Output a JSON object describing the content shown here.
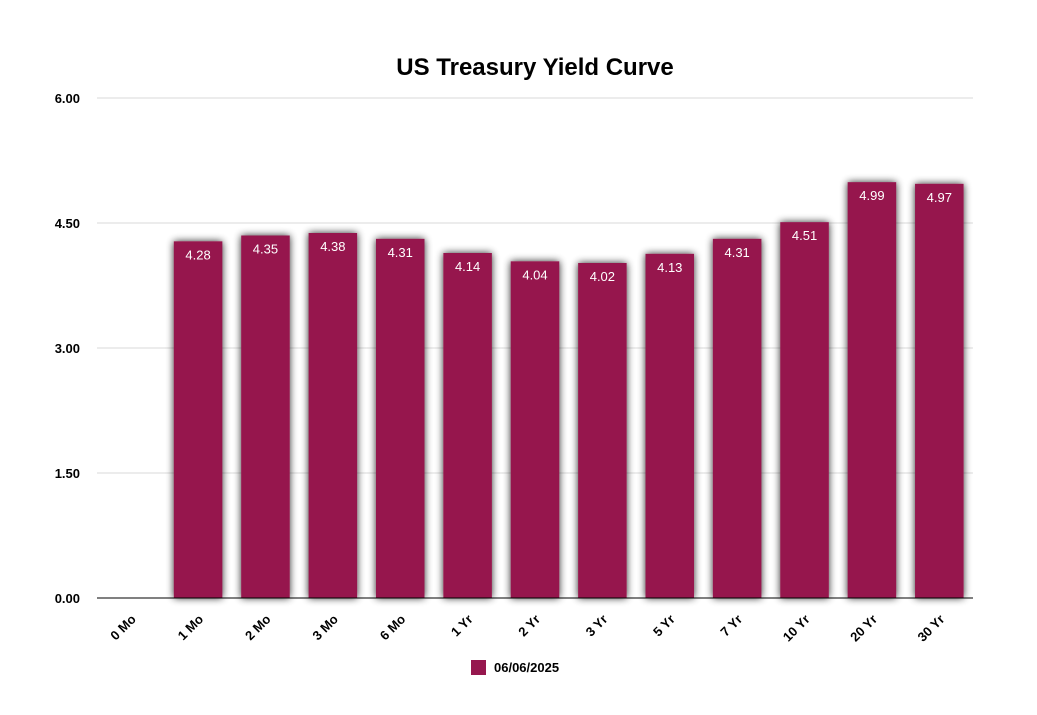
{
  "chart_data": {
    "type": "bar",
    "title": "US Treasury Yield Curve",
    "xlabel": "",
    "ylabel": "",
    "categories": [
      "0 Mo",
      "1 Mo",
      "2 Mo",
      "3 Mo",
      "6 Mo",
      "1 Yr",
      "2 Yr",
      "3 Yr",
      "5 Yr",
      "7 Yr",
      "10 Yr",
      "20 Yr",
      "30 Yr"
    ],
    "series": [
      {
        "name": "06/06/2025",
        "color": "#96174E",
        "values": [
          null,
          4.28,
          4.35,
          4.38,
          4.31,
          4.14,
          4.04,
          4.02,
          4.13,
          4.31,
          4.51,
          4.99,
          4.97
        ],
        "labels": [
          "",
          "4.28",
          "4.35",
          "4.38",
          "4.31",
          "4.14",
          "4.04",
          "4.02",
          "4.13",
          "4.31",
          "4.51",
          "4.99",
          "4.97"
        ]
      }
    ],
    "ylim": [
      0,
      6
    ],
    "yticks": [
      "0.00",
      "1.50",
      "3.00",
      "4.50",
      "6.00"
    ],
    "ytick_values": [
      0,
      1.5,
      3,
      4.5,
      6
    ],
    "grid": true,
    "legend_position": "bottom-center"
  }
}
